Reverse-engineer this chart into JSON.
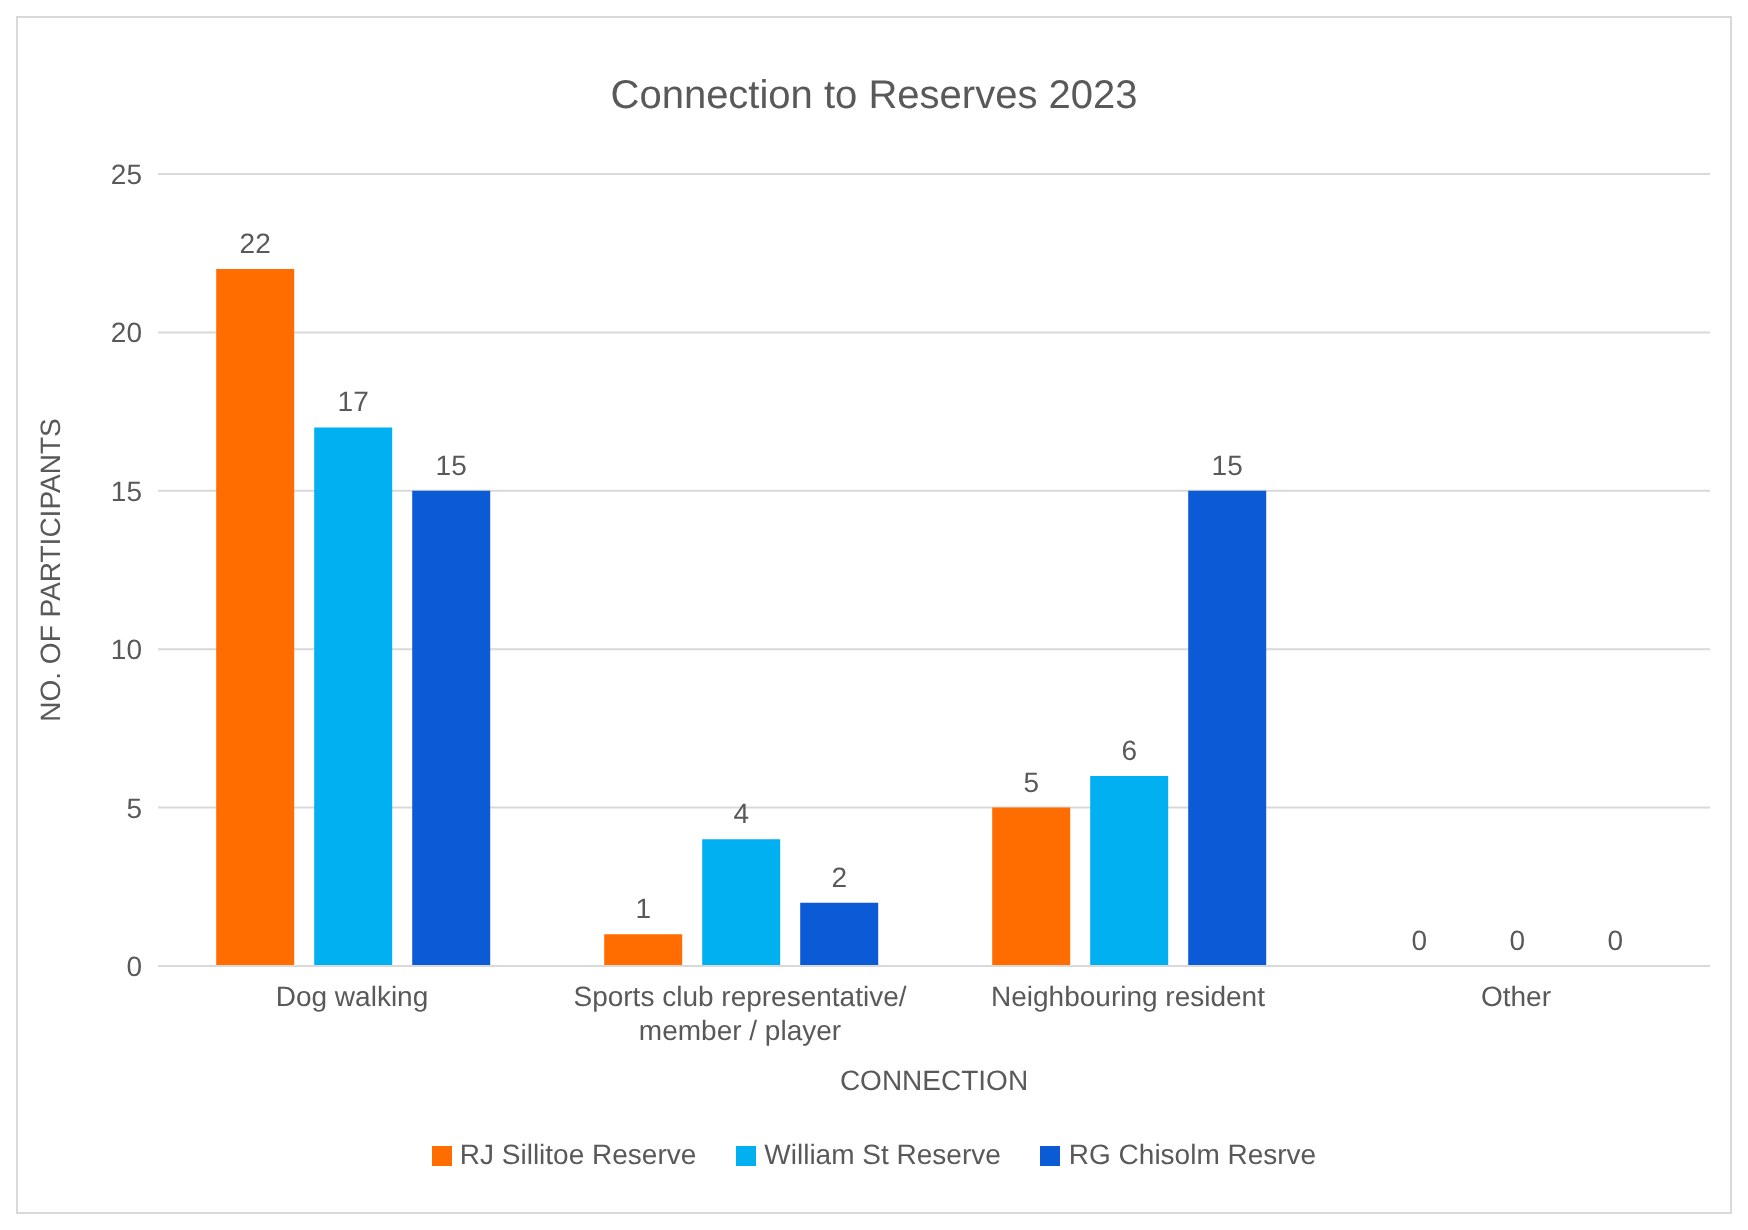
{
  "chart_data": {
    "type": "bar",
    "title": "Connection to Reserves 2023",
    "xlabel": "CONNECTION",
    "ylabel": "NO. OF PARTICIPANTS",
    "categories": [
      "Dog walking",
      "Sports club representative/ member / player",
      "Neighbouring resident",
      "Other"
    ],
    "series": [
      {
        "name": "RJ Sillitoe Reserve",
        "color": "#ff6d00",
        "values": [
          22,
          1,
          5,
          0
        ]
      },
      {
        "name": "William St Reserve",
        "color": "#00b0f0",
        "values": [
          17,
          4,
          6,
          0
        ]
      },
      {
        "name": "RG Chisolm Resrve",
        "color": "#0b5bd7",
        "values": [
          15,
          2,
          15,
          0
        ]
      }
    ],
    "ylim": [
      0,
      25
    ],
    "yticks": [
      0,
      5,
      10,
      15,
      20,
      25
    ],
    "grid": "y",
    "legend": "bottom",
    "data_labels": true
  }
}
